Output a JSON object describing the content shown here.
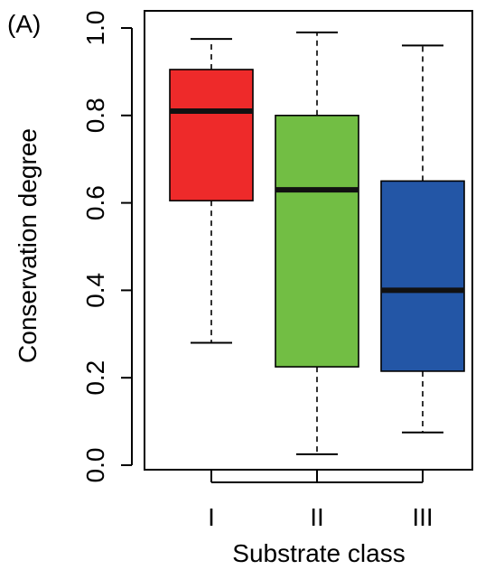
{
  "panel_label": "(A)",
  "chart_data": {
    "type": "box",
    "xlabel": "Substrate class",
    "ylabel": "Conservation degree",
    "ylim": [
      0.0,
      1.0
    ],
    "yticks": [
      0.0,
      0.2,
      0.4,
      0.6,
      0.8,
      1.0
    ],
    "ytick_labels": [
      "0.0",
      "0.2",
      "0.4",
      "0.6",
      "0.8",
      "1.0"
    ],
    "categories": [
      "I",
      "II",
      "III"
    ],
    "grid": false,
    "legend": "none",
    "boxes": [
      {
        "category": "I",
        "whisker_low": 0.28,
        "q1": 0.605,
        "median": 0.81,
        "q3": 0.905,
        "whisker_high": 0.975,
        "color": "#ee2a2a"
      },
      {
        "category": "II",
        "whisker_low": 0.025,
        "q1": 0.225,
        "median": 0.63,
        "q3": 0.8,
        "whisker_high": 0.99,
        "color": "#72be44"
      },
      {
        "category": "III",
        "whisker_low": 0.075,
        "q1": 0.215,
        "median": 0.4,
        "q3": 0.65,
        "whisker_high": 0.96,
        "color": "#2356a6"
      }
    ]
  }
}
